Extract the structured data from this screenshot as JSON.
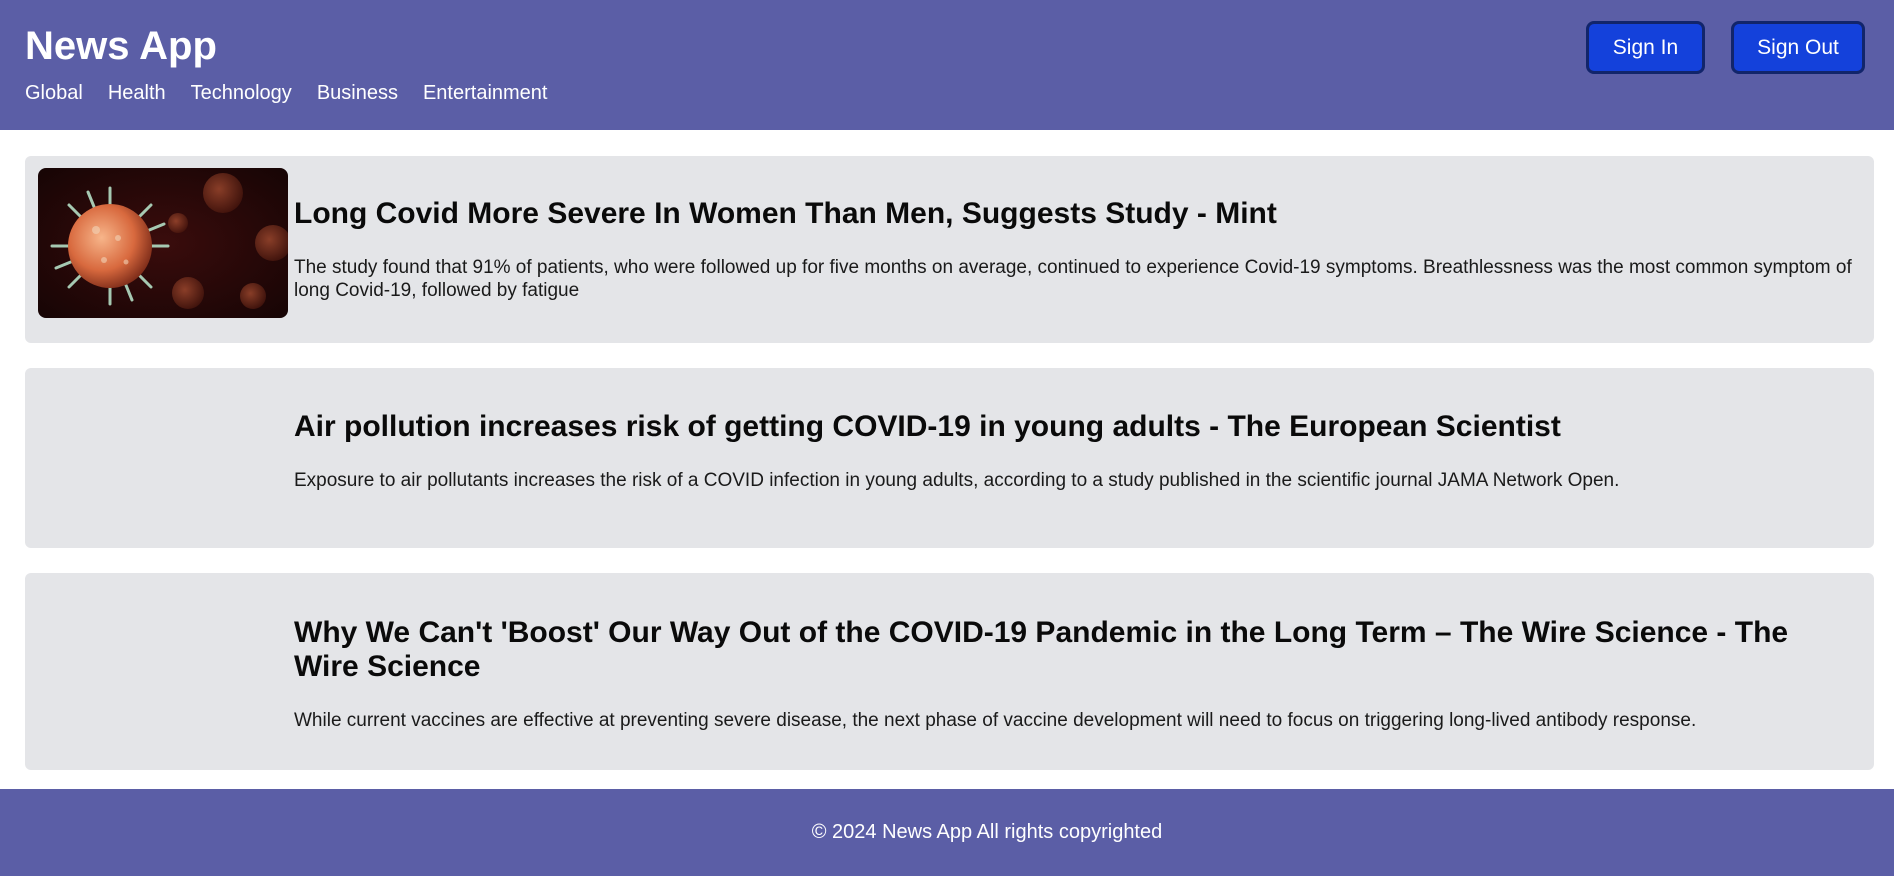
{
  "header": {
    "brand": "News App",
    "nav": [
      "Global",
      "Health",
      "Technology",
      "Business",
      "Entertainment"
    ],
    "sign_in_label": "Sign In",
    "sign_out_label": "Sign Out"
  },
  "articles": [
    {
      "title": "Long Covid More Severe In Women Than Men, Suggests Study - Mint",
      "summary": "The study found that 91% of patients, who were followed up for five months on average, continued to experience Covid-19 symptoms. Breathlessness was the most common symptom of long Covid-19, followed by fatigue",
      "image": "coronavirus-illustration"
    },
    {
      "title": "Air pollution increases risk of getting COVID-19 in young adults - The European Scientist",
      "summary": "Exposure to air pollutants increases the risk of a COVID infection in young adults, according to a study published in the scientific journal JAMA Network Open.",
      "image": ""
    },
    {
      "title": "Why We Can't 'Boost' Our Way Out of the COVID-19 Pandemic in the Long Term – The Wire Science - The Wire Science",
      "summary": "While current vaccines are effective at preventing severe disease, the next phase of vaccine development will need to focus on triggering long-lived antibody response.",
      "image": "partially-loaded-image"
    }
  ],
  "footer": {
    "text": "© 2024 News App All rights copyrighted"
  },
  "colors": {
    "header_bg": "#5b5ea6",
    "button_bg": "#1441db",
    "card_bg": "#e4e5e8"
  }
}
